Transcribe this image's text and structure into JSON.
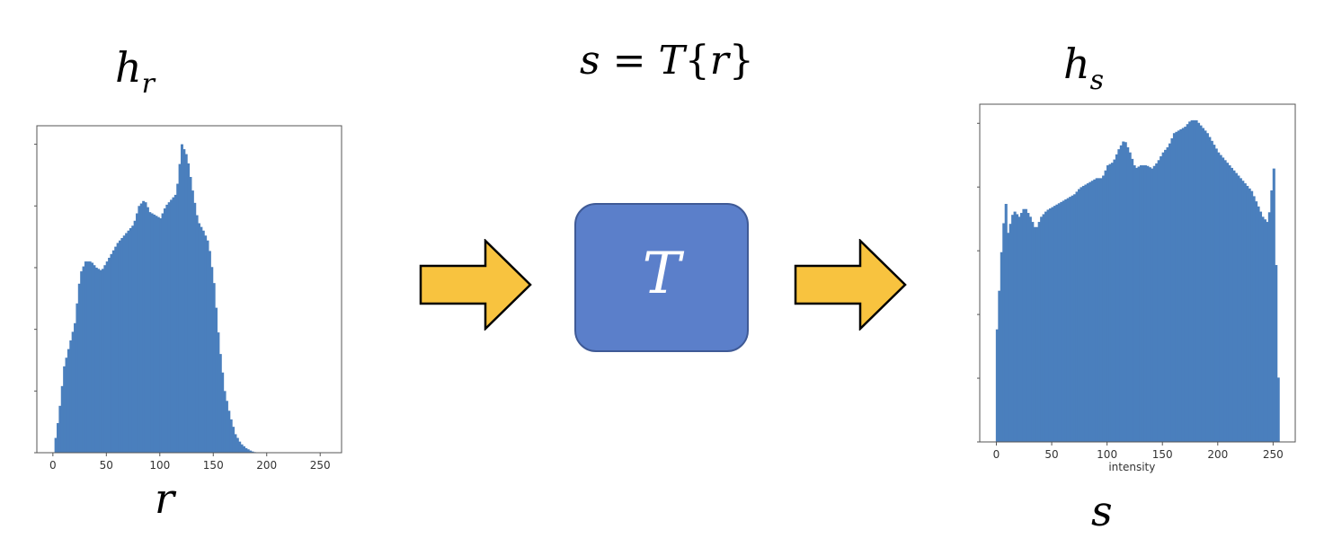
{
  "labels": {
    "input_hist_symbol": "h",
    "input_hist_subscript": "r",
    "output_hist_symbol": "h",
    "output_hist_subscript": "s",
    "formula_s": "s",
    "formula_eq": " = ",
    "formula_T": "T",
    "formula_open": "{",
    "formula_r": "r",
    "formula_close": "}",
    "input_axis_symbol": "r",
    "output_axis_symbol": "s",
    "transform_box": "T"
  },
  "colors": {
    "bar": "#4a7fbd",
    "arrow_fill": "#f8c33f",
    "arrow_stroke": "#000000",
    "box_fill": "#5b7fca"
  },
  "icons": [
    "right-arrow-icon",
    "right-arrow-icon"
  ],
  "chart_data": [
    {
      "type": "bar",
      "title": "",
      "xlabel": "",
      "ylabel": "",
      "xlim": [
        -15,
        270
      ],
      "xticks": [
        "0",
        "50",
        "100",
        "150",
        "200",
        "250"
      ],
      "xtick_values": [
        0,
        50,
        100,
        150,
        200,
        250
      ],
      "ylim": [
        0,
        1.06
      ],
      "grid": false,
      "x": [
        0,
        5,
        10,
        15,
        20,
        25,
        30,
        35,
        40,
        45,
        50,
        55,
        60,
        65,
        70,
        75,
        80,
        85,
        90,
        95,
        100,
        105,
        110,
        115,
        120,
        125,
        130,
        135,
        140,
        145,
        150,
        155,
        160,
        165,
        170,
        175,
        180,
        185,
        190,
        200,
        250
      ],
      "values": [
        0.0,
        0.12,
        0.28,
        0.35,
        0.42,
        0.58,
        0.62,
        0.62,
        0.6,
        0.59,
        0.62,
        0.65,
        0.68,
        0.7,
        0.72,
        0.74,
        0.8,
        0.82,
        0.78,
        0.77,
        0.76,
        0.8,
        0.82,
        0.84,
        1.0,
        0.96,
        0.85,
        0.75,
        0.72,
        0.68,
        0.55,
        0.35,
        0.2,
        0.12,
        0.06,
        0.03,
        0.015,
        0.005,
        0.0,
        0.0,
        0.0
      ]
    },
    {
      "type": "bar",
      "title": "",
      "xlabel": "intensity",
      "ylabel": "",
      "xlim": [
        -15,
        270
      ],
      "xticks": [
        "0",
        "50",
        "100",
        "150",
        "200",
        "250"
      ],
      "xtick_values": [
        0,
        50,
        100,
        150,
        200,
        250
      ],
      "ylim": [
        0,
        1.05
      ],
      "grid": false,
      "x": [
        0,
        5,
        8,
        10,
        15,
        20,
        25,
        30,
        35,
        40,
        45,
        50,
        55,
        60,
        65,
        70,
        75,
        80,
        85,
        90,
        95,
        100,
        105,
        110,
        115,
        120,
        125,
        130,
        135,
        140,
        145,
        150,
        155,
        160,
        165,
        170,
        175,
        180,
        185,
        190,
        195,
        200,
        205,
        210,
        215,
        220,
        225,
        230,
        235,
        240,
        245,
        250,
        253,
        255
      ],
      "values": [
        0.35,
        0.65,
        0.74,
        0.65,
        0.72,
        0.7,
        0.73,
        0.7,
        0.66,
        0.7,
        0.72,
        0.73,
        0.74,
        0.75,
        0.76,
        0.77,
        0.79,
        0.8,
        0.81,
        0.82,
        0.82,
        0.86,
        0.87,
        0.91,
        0.94,
        0.9,
        0.85,
        0.86,
        0.86,
        0.85,
        0.87,
        0.9,
        0.92,
        0.96,
        0.97,
        0.98,
        1.0,
        1.0,
        0.98,
        0.96,
        0.93,
        0.9,
        0.88,
        0.86,
        0.84,
        0.82,
        0.8,
        0.78,
        0.74,
        0.7,
        0.68,
        0.85,
        0.4,
        0.0
      ]
    }
  ]
}
